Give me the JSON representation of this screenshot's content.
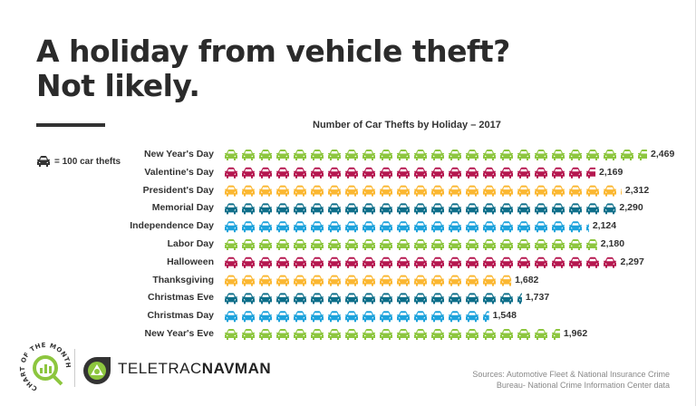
{
  "title_line1": "A holiday from vehicle theft?",
  "title_line2": "Not likely.",
  "legend": {
    "icon": "car-icon",
    "label": "= 100 car thefts"
  },
  "sources_line1": "Sources: Automotive Fleet & National Insurance Crime",
  "sources_line2": "Bureau- National Crime Information Center data",
  "brand": {
    "part1": "TELETRAC",
    "part2": "NAVMAN",
    "badge_text": "CHART OF THE MONTH"
  },
  "chart_data": {
    "type": "bar",
    "style": "pictogram",
    "title": "Number of Car Thefts by Holiday – 2017",
    "unit_per_icon": 100,
    "categories": [
      "New Year's Day",
      "Valentine's Day",
      "President's Day",
      "Memorial Day",
      "Independence Day",
      "Labor Day",
      "Halloween",
      "Thanksgiving",
      "Christmas Eve",
      "Christmas Day",
      "New Year's Eve"
    ],
    "values": [
      2469,
      2169,
      2312,
      2290,
      2124,
      2180,
      2297,
      1682,
      1737,
      1548,
      1962
    ],
    "value_labels": [
      "2,469",
      "2,169",
      "2,312",
      "2,290",
      "2,124",
      "2,180",
      "2,297",
      "1,682",
      "1,737",
      "1,548",
      "1,962"
    ],
    "colors": [
      "#8dc63f",
      "#b5174f",
      "#fbb731",
      "#0e6f8a",
      "#1ea3dc",
      "#8dc63f",
      "#b5174f",
      "#fbb731",
      "#0e6f8a",
      "#1ea3dc",
      "#8dc63f"
    ]
  }
}
